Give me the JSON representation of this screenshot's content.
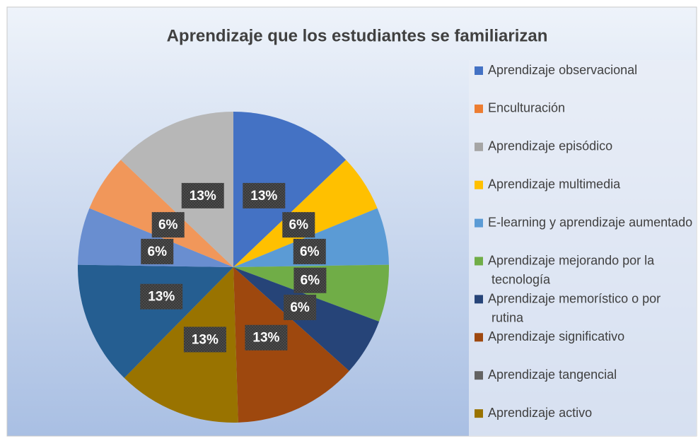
{
  "chart_data": {
    "type": "pie",
    "title": "Aprendizaje que los estudiantes se familiarizan",
    "categories": [
      "Aprendizaje observacional",
      "Enculturación",
      "Aprendizaje episódico",
      "Aprendizaje multimedia",
      "E-learning y aprendizaje aumentado",
      "Aprendizaje mejorando por la tecnología",
      "Aprendizaje memorístico o por rutina",
      "Aprendizaje significativo",
      "Aprendizaje tangencial",
      "Aprendizaje activo",
      null,
      null,
      null,
      null
    ],
    "values": [
      13,
      0,
      0,
      6,
      6,
      6,
      6,
      13,
      0,
      13,
      13,
      6,
      6,
      13
    ],
    "value_labels": [
      "13%",
      null,
      null,
      "6%",
      "6%",
      "6%",
      "6%",
      "13%",
      null,
      "13%",
      "13%",
      "6%",
      "6%",
      "13%"
    ],
    "colors": [
      "#4472c4",
      "#ed7d31",
      "#a5a5a5",
      "#ffc000",
      "#5b9bd5",
      "#70ad47",
      "#264478",
      "#9e480e",
      "#636363",
      "#997300",
      "#255e91",
      "#698ed0",
      "#f1975a",
      "#b7b7b7"
    ],
    "legend": "right"
  }
}
